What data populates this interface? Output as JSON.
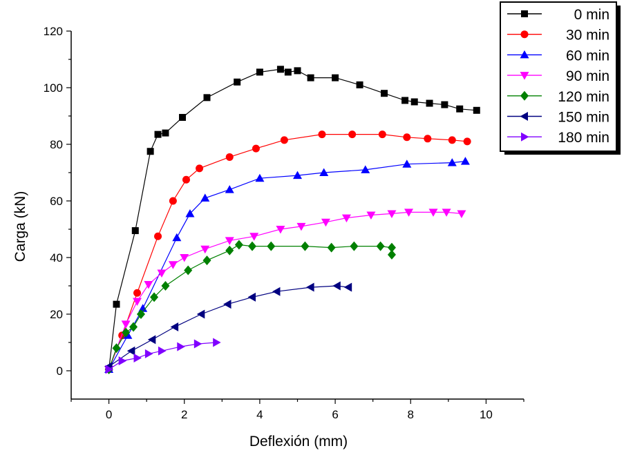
{
  "chart_data": {
    "type": "line",
    "title": "",
    "xlabel": "Deflexión (mm)",
    "ylabel": "Carga (kN)",
    "xlim": [
      -1,
      11
    ],
    "ylim": [
      -10,
      120
    ],
    "xticks": [
      0,
      2,
      4,
      6,
      8,
      10
    ],
    "yticks": [
      0,
      20,
      40,
      60,
      80,
      100,
      120
    ],
    "grid": false,
    "legend_position": "top-right",
    "series": [
      {
        "name": "0 min",
        "color": "#000000",
        "marker": "square",
        "points": [
          [
            0,
            0.5
          ],
          [
            0.2,
            23.5
          ],
          [
            0.7,
            49.5
          ],
          [
            1.1,
            77.5
          ],
          [
            1.3,
            83.5
          ],
          [
            1.5,
            84
          ],
          [
            1.95,
            89.5
          ],
          [
            2.6,
            96.5
          ],
          [
            3.4,
            102
          ],
          [
            4.0,
            105.5
          ],
          [
            4.55,
            106.5
          ],
          [
            4.75,
            105.5
          ],
          [
            5.0,
            106
          ],
          [
            5.35,
            103.5
          ],
          [
            6.0,
            103.5
          ],
          [
            6.65,
            101
          ],
          [
            7.3,
            98
          ],
          [
            7.85,
            95.5
          ],
          [
            8.1,
            95
          ],
          [
            8.5,
            94.5
          ],
          [
            8.9,
            94
          ],
          [
            9.3,
            92.5
          ],
          [
            9.75,
            92
          ]
        ]
      },
      {
        "name": "30 min",
        "color": "#ff0000",
        "marker": "circle",
        "points": [
          [
            0,
            0.5
          ],
          [
            0.35,
            12.5
          ],
          [
            0.75,
            27.5
          ],
          [
            1.3,
            47.5
          ],
          [
            1.7,
            60
          ],
          [
            2.05,
            67.5
          ],
          [
            2.4,
            71.5
          ],
          [
            3.2,
            75.5
          ],
          [
            3.9,
            78.5
          ],
          [
            4.65,
            81.5
          ],
          [
            5.65,
            83.5
          ],
          [
            6.45,
            83.5
          ],
          [
            7.25,
            83.5
          ],
          [
            7.9,
            82.5
          ],
          [
            8.45,
            82
          ],
          [
            9.1,
            81.5
          ],
          [
            9.5,
            81
          ]
        ]
      },
      {
        "name": "60 min",
        "color": "#0000ff",
        "marker": "triangle-up",
        "points": [
          [
            0,
            0.5
          ],
          [
            0.5,
            12.5
          ],
          [
            0.9,
            22
          ],
          [
            1.8,
            47
          ],
          [
            2.15,
            55.5
          ],
          [
            2.55,
            61
          ],
          [
            3.2,
            64
          ],
          [
            4.0,
            68
          ],
          [
            5.0,
            69
          ],
          [
            5.7,
            70
          ],
          [
            6.8,
            71
          ],
          [
            7.9,
            73
          ],
          [
            9.1,
            73.5
          ],
          [
            9.45,
            74
          ]
        ]
      },
      {
        "name": "90 min",
        "color": "#ff00ff",
        "marker": "triangle-down",
        "points": [
          [
            0,
            0.5
          ],
          [
            0.45,
            16.5
          ],
          [
            0.75,
            24.5
          ],
          [
            1.05,
            30.5
          ],
          [
            1.4,
            34.5
          ],
          [
            1.7,
            37.5
          ],
          [
            2.0,
            40
          ],
          [
            2.55,
            43
          ],
          [
            3.2,
            46
          ],
          [
            3.85,
            47.5
          ],
          [
            4.55,
            50
          ],
          [
            5.1,
            51
          ],
          [
            5.75,
            52.5
          ],
          [
            6.3,
            54
          ],
          [
            6.95,
            55
          ],
          [
            7.5,
            55.5
          ],
          [
            7.95,
            56
          ],
          [
            8.6,
            56
          ],
          [
            8.95,
            56
          ],
          [
            9.35,
            55.5
          ]
        ]
      },
      {
        "name": "120 min",
        "color": "#008000",
        "marker": "diamond",
        "points": [
          [
            0,
            0.5
          ],
          [
            0.2,
            8
          ],
          [
            0.45,
            13.5
          ],
          [
            0.65,
            15.5
          ],
          [
            0.85,
            20
          ],
          [
            1.2,
            26
          ],
          [
            1.5,
            30
          ],
          [
            2.1,
            35.5
          ],
          [
            2.6,
            39
          ],
          [
            3.2,
            42.5
          ],
          [
            3.45,
            44.5
          ],
          [
            3.8,
            44
          ],
          [
            4.3,
            44
          ],
          [
            5.2,
            44
          ],
          [
            5.9,
            43.5
          ],
          [
            6.5,
            44
          ],
          [
            7.2,
            44
          ],
          [
            7.5,
            43.5
          ],
          [
            7.5,
            41
          ]
        ]
      },
      {
        "name": "150 min",
        "color": "#000080",
        "marker": "triangle-left",
        "points": [
          [
            0,
            1.5
          ],
          [
            0.6,
            7
          ],
          [
            1.15,
            11
          ],
          [
            1.75,
            15.5
          ],
          [
            2.45,
            20
          ],
          [
            3.15,
            23.5
          ],
          [
            3.8,
            26
          ],
          [
            4.45,
            28
          ],
          [
            5.35,
            29.5
          ],
          [
            6.05,
            30
          ],
          [
            6.35,
            29.5
          ]
        ]
      },
      {
        "name": "180 min",
        "color": "#8000ff",
        "marker": "triangle-right",
        "points": [
          [
            0,
            0.5
          ],
          [
            0.35,
            3.5
          ],
          [
            0.75,
            4.5
          ],
          [
            1.05,
            6
          ],
          [
            1.4,
            7
          ],
          [
            1.9,
            8.5
          ],
          [
            2.35,
            9.5
          ],
          [
            2.85,
            10
          ]
        ]
      }
    ]
  }
}
